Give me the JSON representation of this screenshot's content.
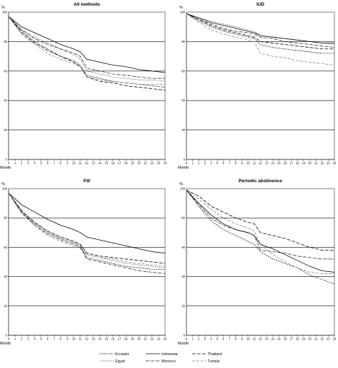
{
  "chart_data": [
    {
      "type": "line",
      "title": "All methods",
      "ylabel": "%",
      "xlabel": "Month",
      "ylim": [
        0,
        100
      ],
      "yticks": [
        "0",
        "20",
        "40",
        "60",
        "80",
        "100"
      ],
      "xticks": [
        "0",
        "1",
        "2",
        "3",
        "4",
        "5",
        "6",
        "7",
        "8",
        "9",
        "10",
        "11",
        "12",
        "13",
        "14",
        "15",
        "16",
        "17",
        "18",
        "19",
        "20",
        "21",
        "22",
        "23",
        "24"
      ],
      "grid": "horizontal",
      "x": [
        0,
        2,
        4,
        6,
        8,
        10,
        11,
        12,
        14,
        16,
        18,
        20,
        22,
        24
      ],
      "series": [
        {
          "name": "Ecuador",
          "values": [
            97,
            87,
            80,
            75,
            70,
            67,
            64,
            57,
            55,
            53,
            52,
            51,
            50,
            49
          ]
        },
        {
          "name": "Egypt",
          "values": [
            97,
            88,
            83,
            79,
            75,
            71,
            68,
            60,
            58,
            56,
            55,
            54,
            54,
            53
          ]
        },
        {
          "name": "Indonesia",
          "values": [
            97,
            90,
            86,
            82,
            78,
            75,
            73,
            68,
            66,
            64,
            63,
            61,
            60,
            59
          ]
        },
        {
          "name": "Morocco",
          "values": [
            97,
            88,
            82,
            78,
            75,
            72,
            70,
            62,
            60,
            58,
            57,
            56,
            55,
            55
          ]
        },
        {
          "name": "Thailand",
          "values": [
            97,
            86,
            79,
            74,
            70,
            66,
            63,
            56,
            53,
            52,
            50,
            49,
            48,
            47
          ]
        },
        {
          "name": "Tunisia",
          "values": [
            97,
            85,
            78,
            72,
            68,
            65,
            63,
            56,
            54,
            53,
            52,
            51,
            51,
            51
          ]
        }
      ]
    },
    {
      "type": "line",
      "title": "IUD",
      "ylabel": "%",
      "xlabel": "Month",
      "ylim": [
        0,
        100
      ],
      "yticks": [
        "0",
        "20",
        "40",
        "60",
        "80",
        "100"
      ],
      "xticks": [
        "0",
        "1",
        "2",
        "3",
        "4",
        "5",
        "6",
        "7",
        "8",
        "9",
        "10",
        "11",
        "12",
        "13",
        "14",
        "15",
        "16",
        "17",
        "18",
        "19",
        "20",
        "21",
        "22",
        "23",
        "24"
      ],
      "grid": "horizontal",
      "x": [
        0,
        2,
        4,
        6,
        8,
        10,
        11,
        12,
        14,
        16,
        18,
        20,
        22,
        24
      ],
      "series": [
        {
          "name": "Ecuador",
          "values": [
            99,
            94,
            90,
            87,
            85,
            83,
            82,
            78,
            76,
            75,
            74,
            73,
            72,
            72
          ]
        },
        {
          "name": "Egypt",
          "values": [
            99,
            96,
            94,
            92,
            90,
            88,
            87,
            84,
            83,
            82,
            81,
            80,
            79,
            78
          ]
        },
        {
          "name": "Indonesia",
          "values": [
            99,
            96,
            93,
            91,
            89,
            87,
            86,
            84,
            83,
            82,
            81,
            80,
            79,
            79
          ]
        },
        {
          "name": "Morocco",
          "values": [
            99,
            95,
            92,
            89,
            87,
            86,
            85,
            83,
            82,
            80,
            79,
            78,
            77,
            76
          ]
        },
        {
          "name": "Thailand",
          "values": [
            99,
            95,
            91,
            88,
            86,
            84,
            83,
            80,
            79,
            78,
            77,
            76,
            75,
            75
          ]
        },
        {
          "name": "Tunisia",
          "values": [
            99,
            93,
            88,
            85,
            83,
            81,
            80,
            72,
            70,
            69,
            67,
            66,
            65,
            64
          ]
        }
      ]
    },
    {
      "type": "line",
      "title": "Pill",
      "ylabel": "%",
      "xlabel": "Month",
      "ylim": [
        0,
        100
      ],
      "yticks": [
        "0",
        "20",
        "40",
        "60",
        "80",
        "100"
      ],
      "xticks": [
        "0",
        "1",
        "2",
        "3",
        "4",
        "5",
        "6",
        "7",
        "8",
        "9",
        "10",
        "11",
        "12",
        "13",
        "14",
        "15",
        "16",
        "17",
        "18",
        "19",
        "20",
        "21",
        "22",
        "23",
        "24"
      ],
      "grid": "horizontal",
      "x": [
        0,
        2,
        4,
        6,
        8,
        10,
        11,
        12,
        14,
        16,
        18,
        20,
        22,
        24
      ],
      "series": [
        {
          "name": "Ecuador",
          "values": [
            97,
            84,
            76,
            70,
            66,
            63,
            61,
            53,
            51,
            49,
            47,
            46,
            45,
            45
          ]
        },
        {
          "name": "Egypt",
          "values": [
            97,
            85,
            77,
            71,
            67,
            64,
            62,
            55,
            53,
            51,
            49,
            48,
            47,
            46
          ]
        },
        {
          "name": "Indonesia",
          "values": [
            97,
            89,
            84,
            79,
            75,
            72,
            70,
            67,
            65,
            63,
            61,
            59,
            57,
            56
          ]
        },
        {
          "name": "Morocco",
          "values": [
            97,
            84,
            75,
            69,
            65,
            62,
            60,
            52,
            50,
            48,
            46,
            44,
            43,
            42
          ]
        },
        {
          "name": "Thailand",
          "values": [
            97,
            85,
            77,
            71,
            67,
            64,
            62,
            56,
            54,
            53,
            52,
            51,
            50,
            49
          ]
        },
        {
          "name": "Tunisia",
          "values": [
            97,
            83,
            75,
            68,
            64,
            61,
            59,
            55,
            53,
            52,
            50,
            49,
            48,
            47
          ]
        }
      ]
    },
    {
      "type": "line",
      "title": "Periodic abstinence",
      "ylabel": "%",
      "xlabel": "Month",
      "ylim": [
        0,
        100
      ],
      "yticks": [
        "0",
        "20",
        "40",
        "60",
        "80",
        "100"
      ],
      "xticks": [
        "0",
        "1",
        "2",
        "3",
        "4",
        "5",
        "6",
        "7",
        "8",
        "9",
        "10",
        "11",
        "12",
        "13",
        "14",
        "15",
        "16",
        "17",
        "18",
        "19",
        "20",
        "21",
        "22",
        "23",
        "24"
      ],
      "grid": "horizontal",
      "x": [
        0,
        2,
        4,
        6,
        8,
        10,
        11,
        12,
        14,
        16,
        18,
        20,
        22,
        24
      ],
      "series": [
        {
          "name": "Ecuador",
          "values": [
            99,
            88,
            78,
            72,
            68,
            64,
            62,
            57,
            52,
            49,
            46,
            41,
            38,
            35
          ]
        },
        {
          "name": "Indonesia",
          "values": [
            99,
            90,
            82,
            76,
            72,
            70,
            68,
            62,
            59,
            55,
            51,
            47,
            44,
            43
          ]
        },
        {
          "name": "Morocco",
          "values": [
            99,
            89,
            80,
            75,
            72,
            70,
            68,
            58,
            57,
            56,
            54,
            53,
            52,
            52
          ]
        },
        {
          "name": "Thailand",
          "values": [
            99,
            95,
            88,
            84,
            80,
            77,
            76,
            70,
            68,
            66,
            63,
            60,
            58,
            58
          ]
        },
        {
          "name": "Tunisia",
          "values": [
            99,
            93,
            86,
            80,
            76,
            73,
            71,
            62,
            55,
            50,
            46,
            43,
            42,
            42
          ]
        }
      ]
    }
  ],
  "legend": {
    "placement": "bottom",
    "items": [
      {
        "name": "Ecuador",
        "style": "dashed-short"
      },
      {
        "name": "Indonesia",
        "style": "solid"
      },
      {
        "name": "Thailand",
        "style": "dashed-long"
      },
      {
        "name": "Egypt",
        "style": "dotted"
      },
      {
        "name": "Morocco",
        "style": "dash-dot"
      },
      {
        "name": "Tunisia",
        "style": "dashed-light"
      }
    ]
  },
  "colors": {
    "line": "#000000",
    "light_line": "#777777",
    "background": "#ffffff"
  }
}
